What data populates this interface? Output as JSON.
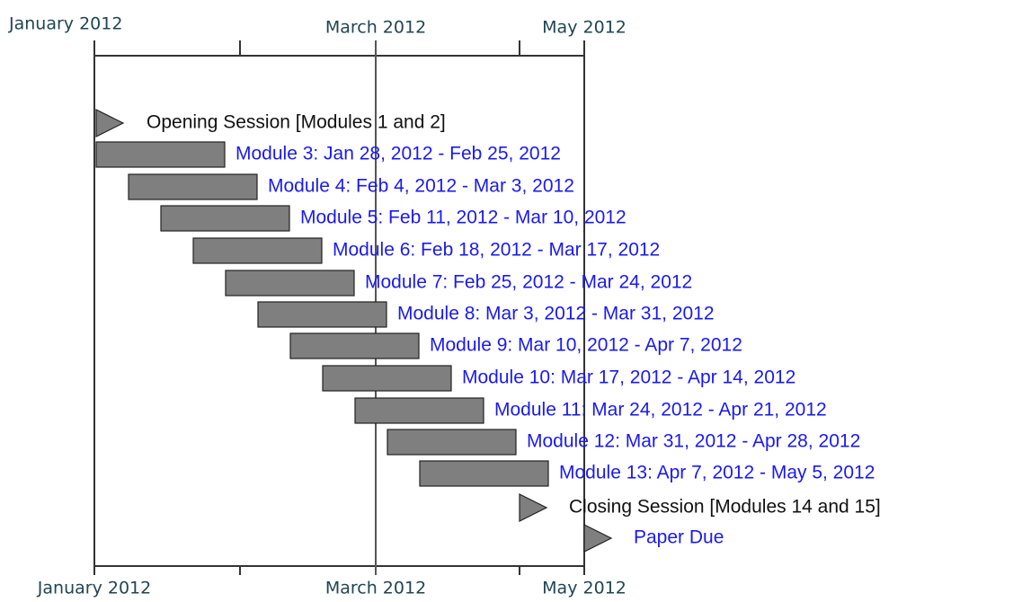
{
  "axis": {
    "top_labels": [
      "January 2012",
      "March 2012",
      "May 2012"
    ],
    "bottom_labels": [
      "January 2012",
      "March 2012",
      "May 2012"
    ]
  },
  "items": [
    {
      "label": "Opening Session [Modules 1 and 2]",
      "kind": "milestone",
      "color": "#111111"
    },
    {
      "label": "Module 3: Jan 28, 2012 - Feb 25, 2012",
      "kind": "bar",
      "color": "#1a1aee"
    },
    {
      "label": "Module 4: Feb 4, 2012 - Mar 3, 2012",
      "kind": "bar",
      "color": "#1a1aee"
    },
    {
      "label": "Module 5: Feb 11, 2012 - Mar 10, 2012",
      "kind": "bar",
      "color": "#1a1aee"
    },
    {
      "label": "Module 6: Feb 18, 2012 - Mar 17, 2012",
      "kind": "bar",
      "color": "#1a1aee"
    },
    {
      "label": "Module 7: Feb 25, 2012 - Mar 24, 2012",
      "kind": "bar",
      "color": "#1a1aee"
    },
    {
      "label": "Module 8: Mar 3, 2012 - Mar 31, 2012",
      "kind": "bar",
      "color": "#1a1aee"
    },
    {
      "label": "Module 9: Mar 10, 2012 - Apr 7, 2012",
      "kind": "bar",
      "color": "#1a1aee"
    },
    {
      "label": "Module 10: Mar 17, 2012 - Apr 14, 2012",
      "kind": "bar",
      "color": "#1a1aee"
    },
    {
      "label": "Module 11: Mar 24, 2012 - Apr 21, 2012",
      "kind": "bar",
      "color": "#1a1aee"
    },
    {
      "label": "Module 12: Mar 31, 2012 - Apr 28, 2012",
      "kind": "bar",
      "color": "#1a1aee"
    },
    {
      "label": "Module 13: Apr 7, 2012 - May 5, 2012",
      "kind": "bar",
      "color": "#1a1aee"
    },
    {
      "label": "Closing Session [Modules 14 and 15]",
      "kind": "milestone",
      "color": "#111111"
    },
    {
      "label": "Paper Due",
      "kind": "milestone",
      "color": "#1a1aee"
    }
  ]
}
